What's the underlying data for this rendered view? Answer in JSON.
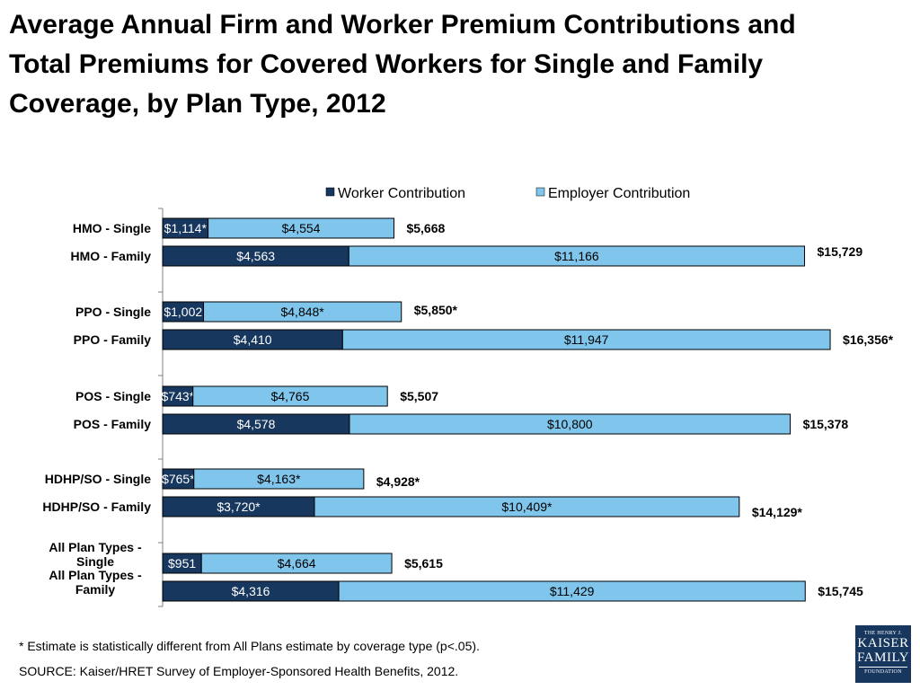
{
  "title_lines": [
    "Average Annual Firm and Worker Premium Contributions and",
    "Total Premiums for Covered Workers for Single and Family",
    "Coverage, by Plan Type, 2012"
  ],
  "footnote": "* Estimate is statistically different from All Plans estimate by coverage type (p<.05).",
  "source": "SOURCE:  Kaiser/HRET Survey of Employer-Sponsored Health Benefits, 2012.",
  "logo": {
    "line1": "THE HENRY J.",
    "line2a": "KAISER",
    "line2b": "FAMILY",
    "line3": "FOUNDATION"
  },
  "colors": {
    "worker": "#17375e",
    "employer": "#7fc5ec",
    "outline": "#000000"
  },
  "chart_data": {
    "type": "bar",
    "orientation": "horizontal",
    "stacked": true,
    "legend_position": "top",
    "categories": [
      "HMO - Single",
      "HMO - Family",
      "PPO - Single",
      "PPO - Family",
      "POS - Single",
      "POS - Family",
      "HDHP/SO - Single",
      "HDHP/SO - Family",
      "All Plan Types - Single",
      "All Plan Types - Family"
    ],
    "series": [
      {
        "name": "Worker Contribution",
        "values": [
          1114,
          4563,
          1002,
          4410,
          743,
          4578,
          765,
          3720,
          951,
          4316
        ],
        "labels": [
          "$1,114*",
          "$4,563",
          "$1,002",
          "$4,410",
          "$743*",
          "$4,578",
          "$765*",
          "$3,720*",
          "$951",
          "$4,316"
        ]
      },
      {
        "name": "Employer Contribution",
        "values": [
          4554,
          11166,
          4848,
          11947,
          4765,
          10800,
          4163,
          10409,
          4664,
          11429
        ],
        "labels": [
          "$4,554",
          "$11,166",
          "$4,848*",
          "$11,947",
          "$4,765",
          "$10,800",
          "$4,163*",
          "$10,409*",
          "$4,664",
          "$11,429"
        ]
      }
    ],
    "totals": [
      5668,
      15729,
      5850,
      16356,
      5507,
      15378,
      4928,
      14129,
      5615,
      15745
    ],
    "total_labels": [
      "$5,668",
      "$15,729",
      "$5,850*",
      "$16,356*",
      "$5,507",
      "$15,378",
      "$4,928*",
      "$14,129*",
      "$5,615",
      "$15,745"
    ],
    "xlim": [
      0,
      16356
    ]
  }
}
